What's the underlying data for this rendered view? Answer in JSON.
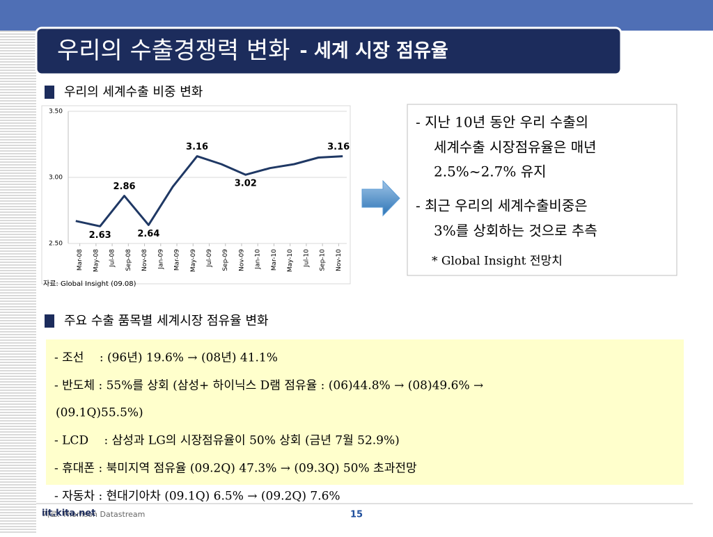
{
  "title": "우리의 수출경쟁력 변화",
  "subtitle": "- 세계 시장 점유율",
  "section1": "우리의 세계수출 비중 변화",
  "chart_data": {
    "type": "line",
    "x": [
      -0.5,
      2.5,
      5.5,
      8.5,
      11.5,
      14.5,
      17.5,
      20.5,
      23.5,
      26.5,
      29.5,
      32.5
    ],
    "values": [
      2.67,
      2.63,
      2.86,
      2.64,
      2.93,
      3.16,
      3.1,
      3.02,
      3.07,
      3.1,
      3.15,
      3.16
    ],
    "value_labels": [
      null,
      "2.63",
      "2.86",
      "2.64",
      null,
      "3.16",
      null,
      "3.02",
      null,
      null,
      null,
      "3.16"
    ],
    "color": "#1f3864",
    "xlim": [
      -1,
      33
    ],
    "xticks": [
      {
        "value": 0,
        "label": "Mar-08"
      },
      {
        "value": 2,
        "label": "May-08"
      },
      {
        "value": 4,
        "label": "Jul-08"
      },
      {
        "value": 6,
        "label": "Sep-08"
      },
      {
        "value": 8,
        "label": "Nov-08"
      },
      {
        "value": 10,
        "label": "Jan-09"
      },
      {
        "value": 12,
        "label": "Mar-09"
      },
      {
        "value": 14,
        "label": "May-09"
      },
      {
        "value": 16,
        "label": "Jul-09"
      },
      {
        "value": 18,
        "label": "Sep-09"
      },
      {
        "value": 20,
        "label": "Nov-09"
      },
      {
        "value": 22,
        "label": "Jan-10"
      },
      {
        "value": 24,
        "label": "Mar-10"
      },
      {
        "value": 26,
        "label": "May-10"
      },
      {
        "value": 28,
        "label": "Jul-10"
      },
      {
        "value": 30,
        "label": "Sep-10"
      },
      {
        "value": 32,
        "label": "Nov-10"
      }
    ],
    "ylim": [
      2.5,
      3.5
    ],
    "yticks": [
      {
        "value": 2.5,
        "label": "2.50"
      },
      {
        "value": 3,
        "label": "3.00"
      },
      {
        "value": 3.5,
        "label": "3.50"
      }
    ],
    "grid": true,
    "source": "자료: Global Insight (09.08)"
  },
  "notes": [
    "- 지난 10년 동안 우리 수출의",
    "세계수출 시장점유율은 매년",
    "2.5%~2.7% 유지",
    "- 최근 우리의 세계수출비중은",
    "3%를 상회하는 것으로 추측",
    "* Global Insight 전망치"
  ],
  "section2": "주요 수출 품목별 세계시장 점유율 변화",
  "items": [
    "- 조선 　: (96년) 19.6%  → (08년) 41.1%",
    "- 반도체 : 55%를 상회 (삼성+ 하이닉스 D램 점유율 : (06)44.8% → (08)49.6% →",
    "(09.1Q)55.5%)",
    "- LCD 　: 삼성과  LG의 시장점유율이  50% 상회 (금년 7월 52.9%)",
    "- 휴대폰 : 북미지역 점유율 (09.2Q) 47.3% → (09.3Q) 50% 초과전망",
    "- 자동차 : 현대기아차 (09.1Q) 6.5%  →  (09.2Q) 7.6%"
  ],
  "footer": {
    "site": "iit.kita.net",
    "source": "자료: Thomson Datastream",
    "page": "15"
  }
}
